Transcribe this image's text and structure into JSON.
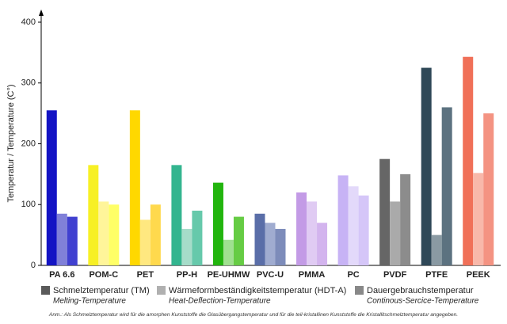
{
  "chart_data": {
    "type": "bar",
    "y_label": "Temperatur / Temperature (C°)",
    "categories": [
      "PA 6.6",
      "POM-C",
      "PET",
      "PP-H",
      "PE-UHMW",
      "PVC-U",
      "PMMA",
      "PC",
      "PVDF",
      "PTFE",
      "PEEK"
    ],
    "series": [
      {
        "name": "Schmelztemperatur (TM)",
        "description": "Melting-Temperature",
        "color": "#5a5a5a",
        "values": [
          255,
          165,
          255,
          165,
          136,
          85,
          120,
          148,
          175,
          325,
          343
        ],
        "colors": [
          "#1414c4",
          "#f7f025",
          "#ffd800",
          "#33b58f",
          "#22b50e",
          "#5a6ea8",
          "#c39be6",
          "#c7b3f5",
          "#666666",
          "#2f4858",
          "#f07058"
        ]
      },
      {
        "name": "Wärmeformbeständigkeitstemperatur (HDT-A)",
        "description": "Heat-Deflection-Temperature",
        "color": "#b0b0b0",
        "values": [
          85,
          105,
          75,
          60,
          42,
          70,
          105,
          130,
          105,
          50,
          152
        ],
        "colors": [
          "#8080d8",
          "#fff59a",
          "#ffe880",
          "#a6dcc9",
          "#a0e090",
          "#a0acd0",
          "#e0cbf3",
          "#e3d9fa",
          "#aaaaaa",
          "#8a9aa3",
          "#f8b8aa"
        ]
      },
      {
        "name": "Dauergebrauchstemperatur",
        "description": "Continous-Sercice-Temperature",
        "color": "#888888",
        "values": [
          80,
          100,
          100,
          90,
          80,
          60,
          70,
          115,
          150,
          260,
          250
        ],
        "colors": [
          "#4040d0",
          "#ffff66",
          "#ffd94d",
          "#66c9ab",
          "#66cc44",
          "#7d8cba",
          "#d3b4ee",
          "#d5c6f8",
          "#8c8c8c",
          "#5c7280",
          "#f49382"
        ]
      }
    ],
    "ylim": [
      0,
      400
    ],
    "yticks": [
      0,
      100,
      200,
      300,
      400
    ],
    "note": "Anm.: Als Schmelztemperatur wird für die amorphen Kunststoffe die Glasübergangstemperatur und für die teil-kristallinen Kunststoffe die Kristallitschmelztemperatur angegeben."
  }
}
